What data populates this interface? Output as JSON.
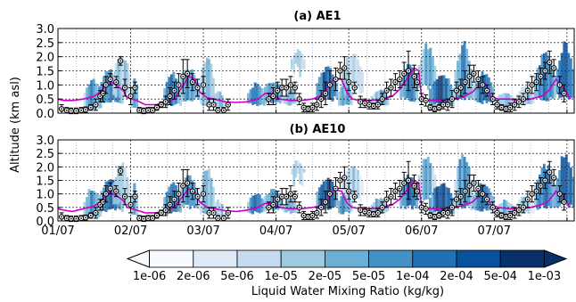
{
  "chart_data": [
    {
      "type": "heatmap",
      "title": "(a)  AE1",
      "ylabel": "Altitude (km asl)",
      "xlabel": "",
      "x_tick_labels": [],
      "y_tick_labels": [
        "0.0",
        "0.5",
        "1.0",
        "1.5",
        "2.0",
        "2.5",
        "3.0"
      ],
      "ylim": [
        0,
        3
      ],
      "xlim_days": [
        0,
        7.1
      ],
      "grid": true,
      "profile_line": {
        "color": "#cc00cc",
        "x": [
          0,
          0.08,
          0.2,
          0.35,
          0.5,
          0.6,
          0.7,
          0.8,
          0.9,
          0.95,
          1.02,
          1.08,
          1.2,
          1.35,
          1.5,
          1.6,
          1.7,
          1.8,
          1.88,
          1.95,
          2.05,
          2.15,
          2.3,
          2.45,
          2.6,
          2.75,
          2.85,
          2.95,
          3.05,
          3.2,
          3.35,
          3.5,
          3.6,
          3.7,
          3.8,
          3.9,
          3.98,
          4.05,
          4.15,
          4.3,
          4.45,
          4.6,
          4.7,
          4.8,
          4.9,
          4.96,
          5.0,
          5.1,
          5.25,
          5.4,
          5.55,
          5.7,
          5.8,
          5.88,
          5.95,
          6.05,
          6.2,
          6.35,
          6.5,
          6.65,
          6.75,
          6.85,
          6.95,
          7.05
        ],
        "y": [
          0.5,
          0.45,
          0.45,
          0.5,
          0.6,
          0.8,
          1.15,
          1.0,
          0.8,
          0.55,
          0.5,
          0.45,
          0.3,
          0.3,
          0.4,
          0.5,
          0.9,
          1.3,
          1.2,
          0.75,
          0.55,
          0.5,
          0.4,
          0.38,
          0.4,
          0.5,
          0.7,
          0.7,
          0.5,
          0.45,
          0.45,
          0.5,
          0.6,
          0.85,
          1.25,
          1.2,
          0.7,
          0.5,
          0.45,
          0.45,
          0.5,
          0.6,
          0.85,
          1.2,
          1.6,
          1.5,
          0.6,
          0.45,
          0.45,
          0.5,
          0.55,
          0.75,
          1.0,
          1.05,
          0.6,
          0.5,
          0.5,
          0.45,
          0.5,
          0.6,
          0.8,
          1.2,
          0.9,
          0.5
        ]
      },
      "observations": {
        "x": [
          0.05,
          0.12,
          0.18,
          0.25,
          0.32,
          0.38,
          0.45,
          0.52,
          0.58,
          0.62,
          0.66,
          0.72,
          0.8,
          0.86,
          0.92,
          1.0,
          1.06,
          1.12,
          1.18,
          1.24,
          1.3,
          1.36,
          1.42,
          1.48,
          1.54,
          1.6,
          1.66,
          1.72,
          1.78,
          1.85,
          1.92,
          2.0,
          2.08,
          2.14,
          2.2,
          2.28,
          2.34,
          2.9,
          2.96,
          3.02,
          3.08,
          3.14,
          3.2,
          3.26,
          3.32,
          3.38,
          3.44,
          3.5,
          3.56,
          3.62,
          3.68,
          3.74,
          3.82,
          3.88,
          3.94,
          4.0,
          4.08,
          4.16,
          4.22,
          4.28,
          4.34,
          4.4,
          4.46,
          4.52,
          4.58,
          4.64,
          4.7,
          4.76,
          4.82,
          4.9,
          4.94,
          5.0,
          5.06,
          5.12,
          5.18,
          5.24,
          5.3,
          5.36,
          5.42,
          5.48,
          5.54,
          5.6,
          5.66,
          5.72,
          5.78,
          5.84,
          5.9,
          5.98,
          6.04,
          6.1,
          6.16,
          6.22,
          6.28,
          6.34,
          6.4,
          6.46,
          6.52,
          6.58,
          6.64,
          6.7,
          6.76,
          6.82,
          6.9,
          6.96
        ],
        "y": [
          0.15,
          0.1,
          0.08,
          0.08,
          0.1,
          0.12,
          0.2,
          0.3,
          0.6,
          0.7,
          1.0,
          1.2,
          1.1,
          1.85,
          0.9,
          0.6,
          0.9,
          0.1,
          0.08,
          0.1,
          0.1,
          0.2,
          0.3,
          0.4,
          0.6,
          0.8,
          1.0,
          1.3,
          1.4,
          1.1,
          0.9,
          1.0,
          0.3,
          0.3,
          0.1,
          0.1,
          0.3,
          0.5,
          0.6,
          0.8,
          0.9,
          0.9,
          1.0,
          0.9,
          0.5,
          0.2,
          0.15,
          0.2,
          0.3,
          0.5,
          0.7,
          1.0,
          1.2,
          1.5,
          1.6,
          1.1,
          0.9,
          0.4,
          0.35,
          0.3,
          0.25,
          0.3,
          0.5,
          0.8,
          0.9,
          1.1,
          1.2,
          1.4,
          1.5,
          1.3,
          1.1,
          0.5,
          0.45,
          0.2,
          0.15,
          0.2,
          0.3,
          0.3,
          0.5,
          0.8,
          0.9,
          1.1,
          1.3,
          1.4,
          1.2,
          1.0,
          0.8,
          0.5,
          0.3,
          0.2,
          0.15,
          0.2,
          0.3,
          0.4,
          0.5,
          0.8,
          1.0,
          1.1,
          1.3,
          1.5,
          1.8,
          1.6,
          1.0,
          0.7
        ],
        "err": [
          0.15,
          0.1,
          0.1,
          0.1,
          0.1,
          0.1,
          0.1,
          0.2,
          0.2,
          0.3,
          0.3,
          0.2,
          0.2,
          0.15,
          0.3,
          0.3,
          0.2,
          0.1,
          0.1,
          0.1,
          0.1,
          0.1,
          0.1,
          0.2,
          0.3,
          0.3,
          0.4,
          0.6,
          0.5,
          0.3,
          0.3,
          0.3,
          0.2,
          0.2,
          0.1,
          0.1,
          0.2,
          0.2,
          0.3,
          0.3,
          0.3,
          0.3,
          0.3,
          0.2,
          0.2,
          0.15,
          0.1,
          0.15,
          0.2,
          0.3,
          0.4,
          0.5,
          0.4,
          0.3,
          0.4,
          0.3,
          0.2,
          0.2,
          0.15,
          0.15,
          0.1,
          0.15,
          0.2,
          0.3,
          0.3,
          0.3,
          0.3,
          0.4,
          0.7,
          0.4,
          0.3,
          0.2,
          0.2,
          0.1,
          0.1,
          0.1,
          0.15,
          0.2,
          0.3,
          0.3,
          0.3,
          0.4,
          0.4,
          0.3,
          0.3,
          0.3,
          0.2,
          0.2,
          0.15,
          0.1,
          0.1,
          0.15,
          0.2,
          0.2,
          0.2,
          0.3,
          0.3,
          0.3,
          0.3,
          0.3,
          0.4,
          0.3,
          0.3,
          0.3
        ]
      }
    },
    {
      "type": "heatmap",
      "title": "(b)  AE10",
      "ylabel": "Altitude (km asl)",
      "xlabel": "",
      "x_tick_labels": [
        "01/07",
        "02/07",
        "03/07",
        "04/07",
        "05/07",
        "06/07",
        "07/07"
      ],
      "y_tick_labels": [
        "0.0",
        "0.5",
        "1.0",
        "1.5",
        "2.0",
        "2.5",
        "3.0"
      ],
      "ylim": [
        0,
        3
      ],
      "xlim_days": [
        0,
        7.1
      ],
      "grid": true,
      "profile_line": {
        "color": "#cc00cc",
        "x": [
          0,
          0.08,
          0.2,
          0.35,
          0.5,
          0.6,
          0.7,
          0.8,
          0.9,
          0.95,
          1.02,
          1.08,
          1.2,
          1.35,
          1.5,
          1.6,
          1.7,
          1.8,
          1.88,
          1.95,
          2.05,
          2.15,
          2.3,
          2.45,
          2.6,
          2.75,
          2.85,
          2.95,
          3.05,
          3.2,
          3.35,
          3.5,
          3.6,
          3.7,
          3.8,
          3.9,
          3.98,
          4.05,
          4.15,
          4.3,
          4.45,
          4.6,
          4.7,
          4.8,
          4.9,
          4.96,
          5.0,
          5.1,
          5.25,
          5.4,
          5.55,
          5.7,
          5.8,
          5.88,
          5.95,
          6.05,
          6.2,
          6.35,
          6.5,
          6.65,
          6.75,
          6.85,
          6.95,
          7.05
        ],
        "y": [
          0.45,
          0.4,
          0.35,
          0.45,
          0.55,
          0.75,
          1.05,
          0.95,
          0.75,
          0.5,
          0.45,
          0.4,
          0.3,
          0.3,
          0.4,
          0.5,
          0.85,
          1.2,
          1.1,
          0.7,
          0.5,
          0.45,
          0.38,
          0.35,
          0.4,
          0.5,
          0.65,
          0.65,
          0.5,
          0.45,
          0.45,
          0.5,
          0.55,
          0.8,
          1.15,
          1.1,
          0.65,
          0.5,
          0.45,
          0.45,
          0.5,
          0.6,
          0.8,
          1.15,
          1.5,
          1.4,
          0.6,
          0.45,
          0.45,
          0.5,
          0.55,
          0.7,
          0.95,
          1.0,
          0.6,
          0.5,
          0.45,
          0.45,
          0.5,
          0.6,
          0.75,
          1.1,
          0.85,
          0.5
        ]
      },
      "observations": {
        "x": [
          0.05,
          0.12,
          0.18,
          0.25,
          0.32,
          0.38,
          0.45,
          0.52,
          0.58,
          0.62,
          0.66,
          0.72,
          0.8,
          0.86,
          0.92,
          1.0,
          1.06,
          1.12,
          1.18,
          1.24,
          1.3,
          1.36,
          1.42,
          1.48,
          1.54,
          1.6,
          1.66,
          1.72,
          1.78,
          1.85,
          1.92,
          2.0,
          2.08,
          2.14,
          2.2,
          2.28,
          2.34,
          2.9,
          2.96,
          3.02,
          3.08,
          3.14,
          3.2,
          3.26,
          3.32,
          3.38,
          3.44,
          3.5,
          3.56,
          3.62,
          3.68,
          3.74,
          3.82,
          3.88,
          3.94,
          4.0,
          4.08,
          4.16,
          4.22,
          4.28,
          4.34,
          4.4,
          4.46,
          4.52,
          4.58,
          4.64,
          4.7,
          4.76,
          4.82,
          4.9,
          4.94,
          5.0,
          5.06,
          5.12,
          5.18,
          5.24,
          5.3,
          5.36,
          5.42,
          5.48,
          5.54,
          5.6,
          5.66,
          5.72,
          5.78,
          5.84,
          5.9,
          5.98,
          6.04,
          6.1,
          6.16,
          6.22,
          6.28,
          6.34,
          6.4,
          6.46,
          6.52,
          6.58,
          6.64,
          6.7,
          6.76,
          6.82,
          6.9,
          6.96
        ],
        "y": [
          0.15,
          0.1,
          0.08,
          0.08,
          0.1,
          0.12,
          0.2,
          0.3,
          0.6,
          0.7,
          1.0,
          1.2,
          1.1,
          1.85,
          0.9,
          0.6,
          0.9,
          0.1,
          0.08,
          0.1,
          0.1,
          0.2,
          0.3,
          0.4,
          0.6,
          0.8,
          1.0,
          1.3,
          1.4,
          1.1,
          0.9,
          1.0,
          0.3,
          0.3,
          0.1,
          0.1,
          0.3,
          0.5,
          0.6,
          0.8,
          0.9,
          0.9,
          1.0,
          0.9,
          0.5,
          0.2,
          0.15,
          0.2,
          0.3,
          0.5,
          0.7,
          1.0,
          1.2,
          1.5,
          1.6,
          1.1,
          0.9,
          0.4,
          0.35,
          0.3,
          0.25,
          0.3,
          0.5,
          0.8,
          0.9,
          1.1,
          1.2,
          1.4,
          1.5,
          1.3,
          1.1,
          0.5,
          0.45,
          0.2,
          0.15,
          0.2,
          0.3,
          0.3,
          0.5,
          0.8,
          0.9,
          1.1,
          1.3,
          1.4,
          1.2,
          1.0,
          0.8,
          0.5,
          0.3,
          0.2,
          0.15,
          0.2,
          0.3,
          0.4,
          0.5,
          0.8,
          1.0,
          1.1,
          1.3,
          1.5,
          1.8,
          1.6,
          1.0,
          0.7
        ],
        "err": [
          0.15,
          0.1,
          0.1,
          0.1,
          0.1,
          0.1,
          0.1,
          0.2,
          0.2,
          0.3,
          0.3,
          0.2,
          0.2,
          0.15,
          0.3,
          0.3,
          0.2,
          0.1,
          0.1,
          0.1,
          0.1,
          0.1,
          0.1,
          0.2,
          0.3,
          0.3,
          0.4,
          0.6,
          0.5,
          0.3,
          0.3,
          0.3,
          0.2,
          0.2,
          0.1,
          0.1,
          0.2,
          0.2,
          0.3,
          0.3,
          0.3,
          0.3,
          0.3,
          0.2,
          0.2,
          0.15,
          0.1,
          0.15,
          0.2,
          0.3,
          0.4,
          0.5,
          0.4,
          0.3,
          0.4,
          0.3,
          0.2,
          0.2,
          0.15,
          0.15,
          0.1,
          0.15,
          0.2,
          0.3,
          0.3,
          0.3,
          0.3,
          0.4,
          0.7,
          0.4,
          0.3,
          0.2,
          0.2,
          0.1,
          0.1,
          0.1,
          0.15,
          0.2,
          0.3,
          0.3,
          0.3,
          0.4,
          0.4,
          0.3,
          0.3,
          0.3,
          0.2,
          0.2,
          0.15,
          0.1,
          0.1,
          0.15,
          0.2,
          0.2,
          0.2,
          0.3,
          0.3,
          0.3,
          0.3,
          0.3,
          0.4,
          0.3,
          0.3,
          0.3
        ]
      }
    }
  ],
  "colorbar": {
    "label": "Liquid Water Mixing Ratio (kg/kg)",
    "ticks": [
      "1e-06",
      "2e-06",
      "5e-06",
      "1e-05",
      "2e-05",
      "5e-05",
      "1e-04",
      "2e-04",
      "5e-04",
      "1e-03"
    ],
    "colors": [
      "#f7fbff",
      "#deebf7",
      "#c6dbef",
      "#9ecae1",
      "#6baed6",
      "#4292c6",
      "#2171b5",
      "#08519c",
      "#08306b"
    ]
  },
  "cloud_patches": [
    [
      0.35,
      0.6,
      0.15,
      1.3,
      5
    ],
    [
      0.55,
      0.9,
      0.4,
      1.6,
      6
    ],
    [
      0.75,
      1.0,
      0.6,
      2.2,
      3
    ],
    [
      1.0,
      1.1,
      0.2,
      1.4,
      4
    ],
    [
      1.45,
      1.7,
      0.3,
      1.5,
      6
    ],
    [
      1.65,
      1.95,
      0.5,
      1.7,
      5
    ],
    [
      1.95,
      2.15,
      0.3,
      2.2,
      4
    ],
    [
      2.1,
      2.3,
      0.2,
      0.8,
      3
    ],
    [
      2.6,
      2.85,
      0.3,
      1.1,
      6
    ],
    [
      2.8,
      3.1,
      0.4,
      1.2,
      5
    ],
    [
      3.1,
      3.3,
      0.3,
      0.9,
      4
    ],
    [
      3.2,
      3.4,
      1.5,
      2.3,
      3
    ],
    [
      3.55,
      3.85,
      0.5,
      1.7,
      7
    ],
    [
      3.85,
      4.05,
      0.3,
      1.2,
      5
    ],
    [
      3.9,
      4.2,
      0.8,
      2.2,
      3
    ],
    [
      4.3,
      4.55,
      0.3,
      0.9,
      4
    ],
    [
      4.7,
      4.95,
      0.5,
      1.8,
      6
    ],
    [
      4.95,
      5.2,
      0.9,
      2.5,
      4
    ],
    [
      5.1,
      5.45,
      0.3,
      1.5,
      7
    ],
    [
      5.45,
      5.7,
      0.5,
      2.6,
      5
    ],
    [
      5.7,
      6.0,
      0.4,
      1.5,
      6
    ],
    [
      6.0,
      6.3,
      0.2,
      0.8,
      4
    ],
    [
      6.3,
      6.55,
      0.3,
      1.0,
      3
    ],
    [
      6.55,
      6.85,
      0.5,
      2.2,
      6
    ],
    [
      6.85,
      7.1,
      0.6,
      2.6,
      7
    ]
  ]
}
